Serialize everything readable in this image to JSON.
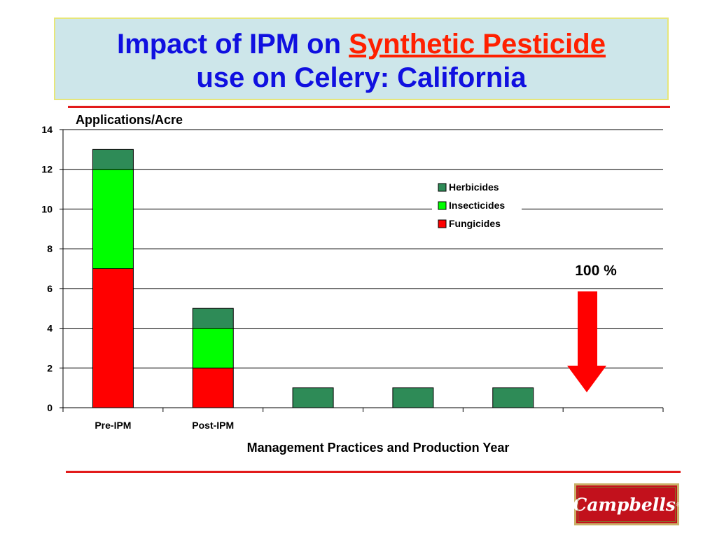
{
  "slide": {
    "title_part1": "Impact of IPM on ",
    "title_highlight": "Synthetic Pesticide",
    "title_line2": "use on Celery: California",
    "logo_text": "Campbells",
    "logo_reg": "®"
  },
  "colors": {
    "herbicides": "#2e8b57",
    "insecticides": "#00ff00",
    "fungicides": "#ff0000",
    "arrow": "#ff0000",
    "title_text": "#1010e0",
    "title_highlight": "#ff2000"
  },
  "chart_data": {
    "type": "bar",
    "stacked": true,
    "ylabel": "Applications/Acre",
    "xlabel": "Management Practices and Production Year",
    "ylim": [
      0,
      14
    ],
    "yticks": [
      "0",
      "2",
      "4",
      "6",
      "8",
      "10",
      "12",
      "14"
    ],
    "categories": [
      "Pre-IPM",
      "Post-IPM",
      "",
      "",
      "",
      ""
    ],
    "series": [
      {
        "name": "Fungicides",
        "values": [
          7,
          2,
          0,
          0,
          0,
          0
        ]
      },
      {
        "name": "Insecticides",
        "values": [
          5,
          2,
          0,
          0,
          0,
          0
        ]
      },
      {
        "name": "Herbicides",
        "values": [
          1,
          1,
          1,
          1,
          1,
          0
        ]
      }
    ],
    "legend_order": [
      "Herbicides",
      "Insecticides",
      "Fungicides"
    ],
    "legend_position": "right",
    "grid": true,
    "annotation": "100 %"
  }
}
